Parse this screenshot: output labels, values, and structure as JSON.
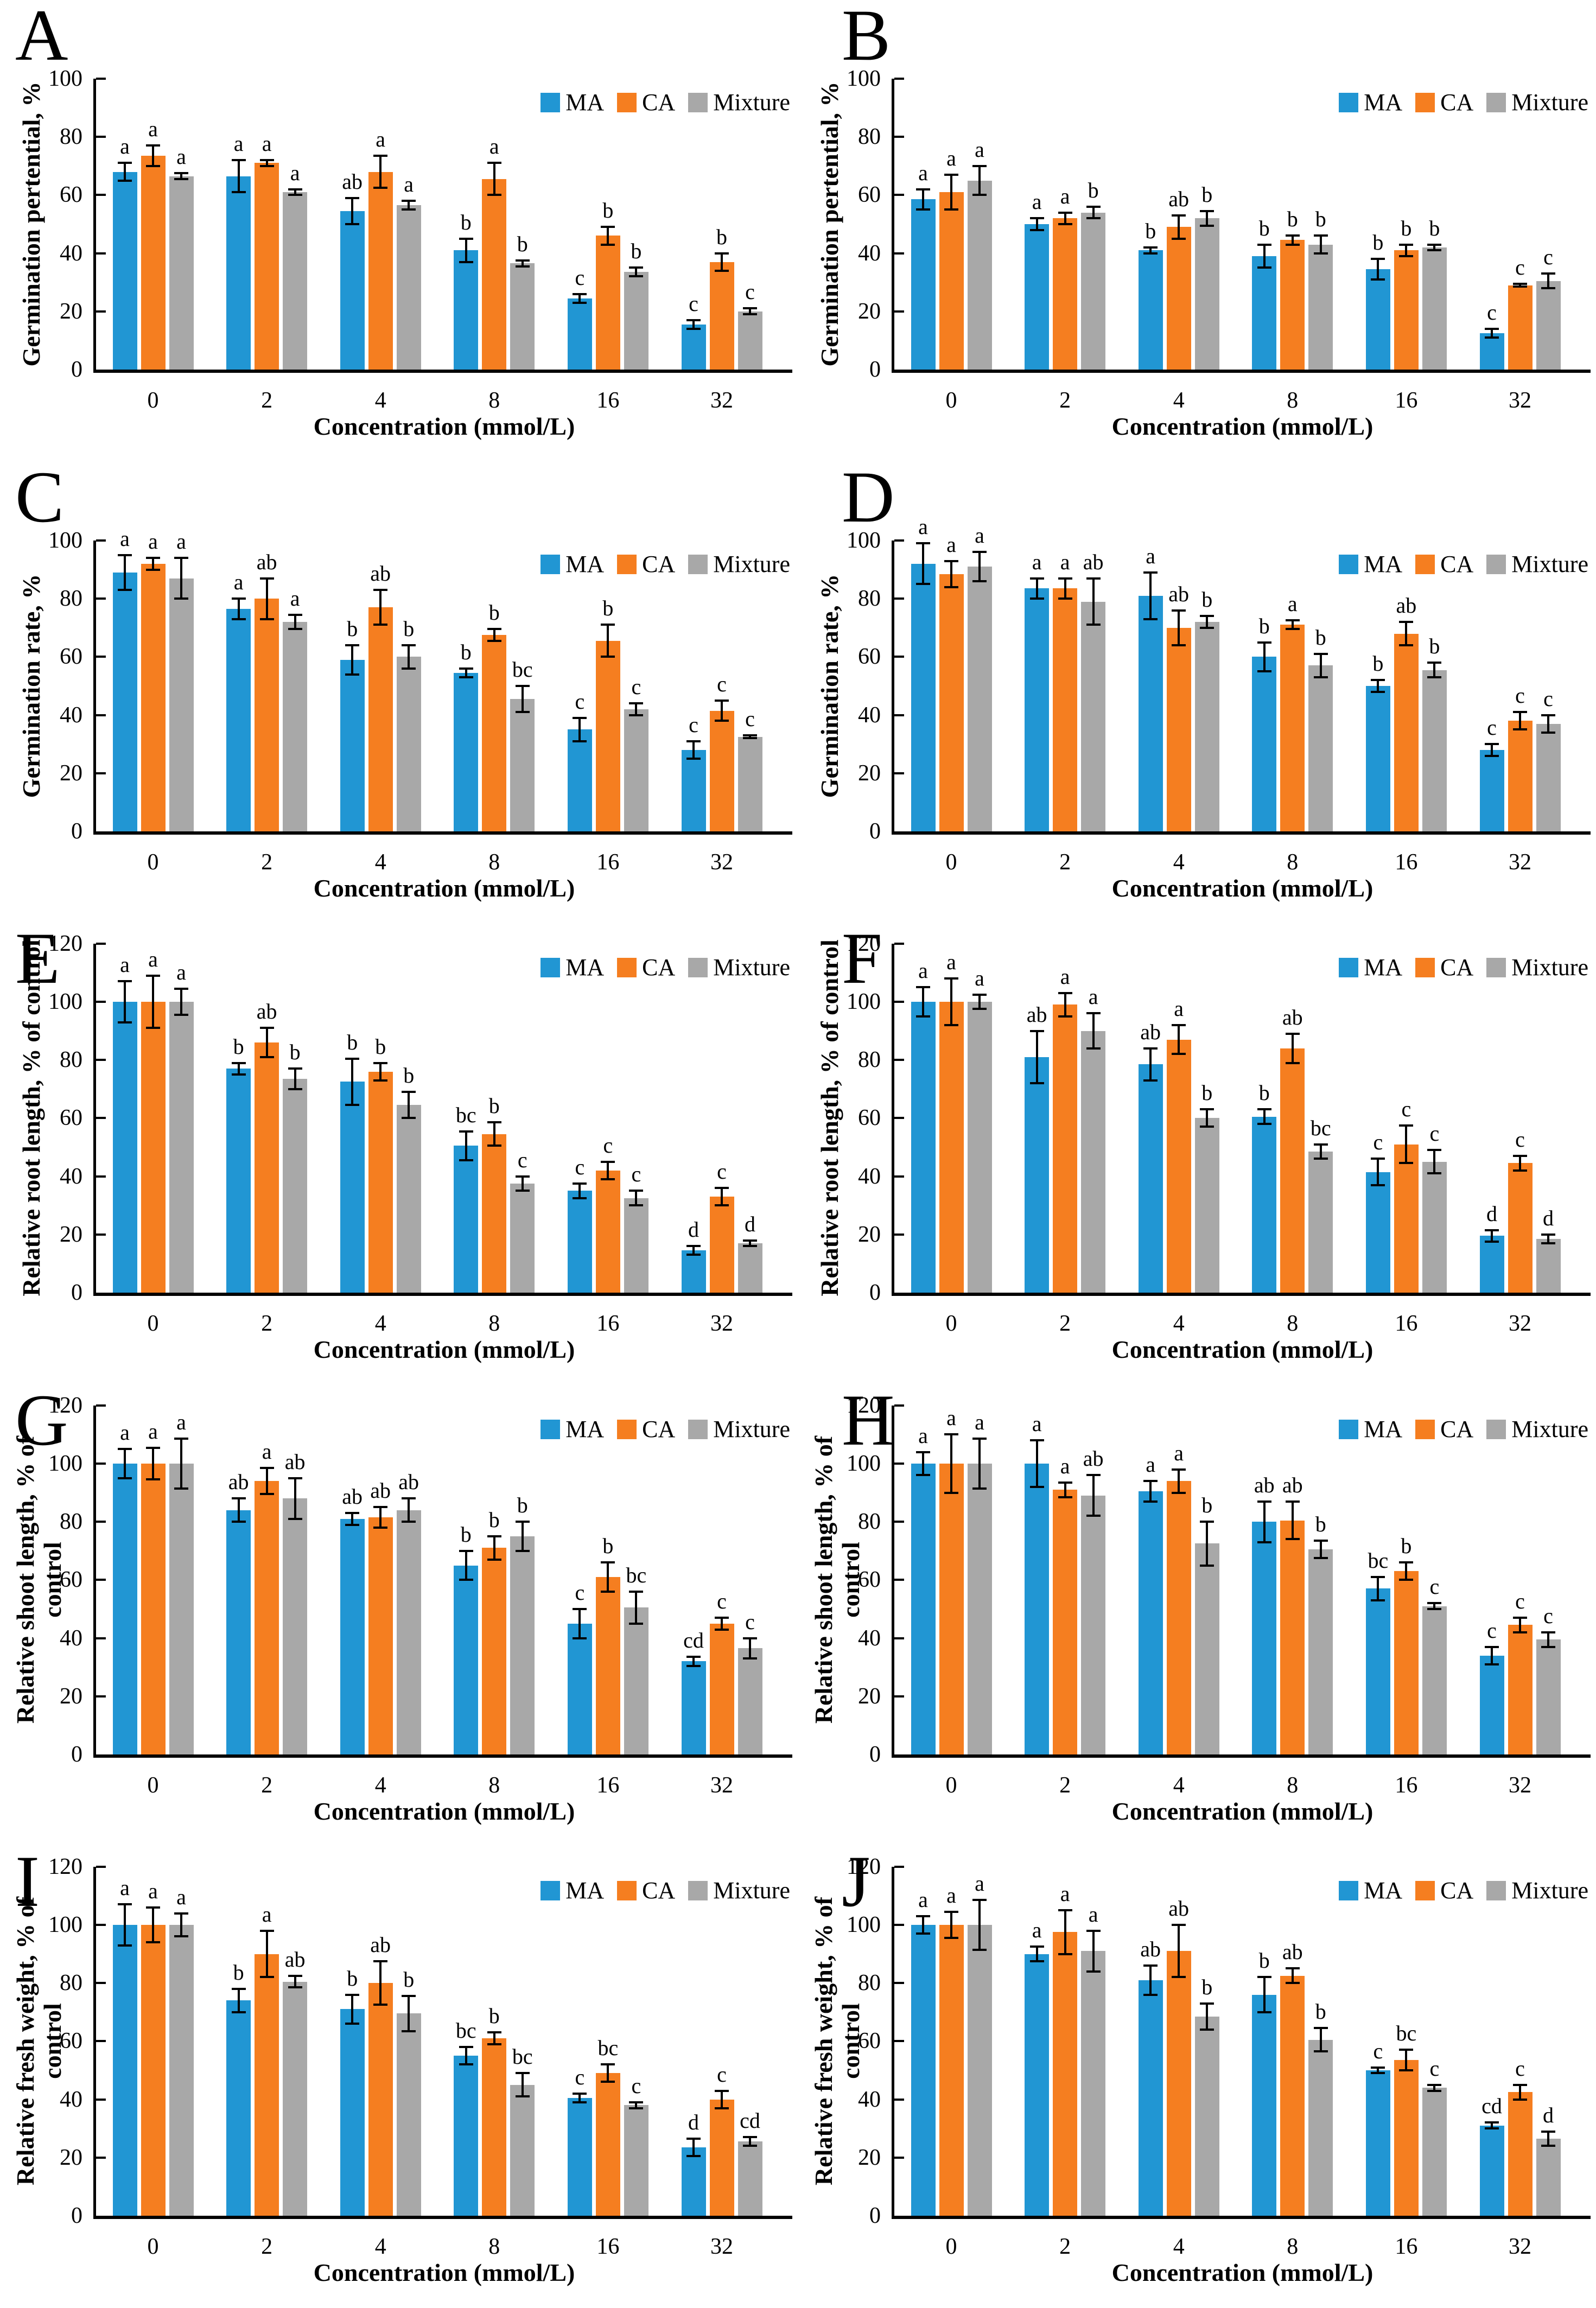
{
  "figure": {
    "xlabel": "Concentration (mmol/L)",
    "legend": [
      "MA",
      "CA",
      "Mixture"
    ],
    "colors": {
      "MA": "#2196D3",
      "CA": "#F57E20",
      "Mixture": "#A8A8A8"
    },
    "axis_color": "#000000",
    "layout": {
      "columns": 2,
      "rows": 5,
      "legend_position": "top-right",
      "grid": "off",
      "error_bars": true
    }
  },
  "chart_data": [
    {
      "panel": "A",
      "type": "bar",
      "ylabel_lines": [
        "Germination pertential, %"
      ],
      "ylim": [
        0,
        100
      ],
      "ytick_step": 20,
      "categories": [
        "0",
        "2",
        "4",
        "8",
        "16",
        "32"
      ],
      "series": [
        {
          "name": "MA",
          "values": [
            68,
            66.5,
            54.5,
            41,
            24.5,
            15.5
          ],
          "errors": [
            3,
            5.5,
            4.5,
            4,
            1.5,
            1.5
          ],
          "letters": [
            "a",
            "a",
            "ab",
            "b",
            "c",
            "c"
          ]
        },
        {
          "name": "CA",
          "values": [
            73.5,
            71,
            68,
            65.5,
            46,
            37
          ],
          "errors": [
            3.5,
            1,
            5.5,
            5.5,
            3,
            3
          ],
          "letters": [
            "a",
            "a",
            "a",
            "a",
            "b",
            "b"
          ]
        },
        {
          "name": "Mixture",
          "values": [
            66.5,
            61,
            56.5,
            36.5,
            33.5,
            20
          ],
          "errors": [
            1,
            1,
            1.5,
            1,
            1.5,
            1
          ],
          "letters": [
            "a",
            "a",
            "a",
            "b",
            "b",
            "c"
          ]
        }
      ]
    },
    {
      "panel": "B",
      "type": "bar",
      "ylabel_lines": [
        "Germination pertential, %"
      ],
      "ylim": [
        0,
        100
      ],
      "ytick_step": 20,
      "categories": [
        "0",
        "2",
        "4",
        "8",
        "16",
        "32"
      ],
      "series": [
        {
          "name": "MA",
          "values": [
            58.5,
            50,
            41,
            39,
            34.5,
            12.5
          ],
          "errors": [
            3.5,
            2,
            1,
            4,
            3.5,
            1.5
          ],
          "letters": [
            "a",
            "a",
            "b",
            "b",
            "b",
            "c"
          ]
        },
        {
          "name": "CA",
          "values": [
            61,
            52,
            49,
            44.5,
            41,
            29
          ],
          "errors": [
            6,
            2,
            4,
            1.5,
            2,
            0.5
          ],
          "letters": [
            "a",
            "a",
            "ab",
            "b",
            "b",
            "c"
          ]
        },
        {
          "name": "Mixture",
          "values": [
            65,
            54,
            52,
            43,
            42,
            30.5
          ],
          "errors": [
            5,
            2,
            2.5,
            3,
            1,
            2.5
          ],
          "letters": [
            "a",
            "b",
            "b",
            "b",
            "b",
            "c"
          ]
        }
      ]
    },
    {
      "panel": "C",
      "type": "bar",
      "ylabel_lines": [
        "Germination rate, %"
      ],
      "ylim": [
        0,
        100
      ],
      "ytick_step": 20,
      "categories": [
        "0",
        "2",
        "4",
        "8",
        "16",
        "32"
      ],
      "series": [
        {
          "name": "MA",
          "values": [
            89,
            76.5,
            59,
            54.5,
            35,
            28
          ],
          "errors": [
            6,
            3.5,
            5,
            1.5,
            4,
            3
          ],
          "letters": [
            "a",
            "a",
            "b",
            "b",
            "c",
            "c"
          ]
        },
        {
          "name": "CA",
          "values": [
            92,
            80,
            77,
            67.5,
            65.5,
            41.5
          ],
          "errors": [
            2,
            7,
            6,
            2,
            5.5,
            3.5
          ],
          "letters": [
            "a",
            "ab",
            "ab",
            "b",
            "b",
            "c"
          ]
        },
        {
          "name": "Mixture",
          "values": [
            87,
            72,
            60,
            45.5,
            42,
            32.5
          ],
          "errors": [
            7,
            2.5,
            4,
            4.5,
            2,
            0.5
          ],
          "letters": [
            "a",
            "a",
            "b",
            "bc",
            "c",
            "c"
          ]
        }
      ]
    },
    {
      "panel": "D",
      "type": "bar",
      "ylabel_lines": [
        "Germination rate, %"
      ],
      "ylim": [
        0,
        100
      ],
      "ytick_step": 20,
      "categories": [
        "0",
        "2",
        "4",
        "8",
        "16",
        "32"
      ],
      "series": [
        {
          "name": "MA",
          "values": [
            92,
            83.5,
            81,
            60,
            50,
            28
          ],
          "errors": [
            7,
            3.5,
            8,
            5,
            2,
            2
          ],
          "letters": [
            "a",
            "a",
            "a",
            "b",
            "b",
            "c"
          ]
        },
        {
          "name": "CA",
          "values": [
            88.5,
            83.5,
            70,
            71,
            68,
            38
          ],
          "errors": [
            4.5,
            3.5,
            6,
            1.5,
            4,
            3
          ],
          "letters": [
            "a",
            "a",
            "ab",
            "a",
            "ab",
            "c"
          ]
        },
        {
          "name": "Mixture",
          "values": [
            91,
            79,
            72,
            57,
            55.5,
            37
          ],
          "errors": [
            5,
            8,
            2,
            4,
            2.5,
            3
          ],
          "letters": [
            "a",
            "ab",
            "b",
            "b",
            "b",
            "c"
          ]
        }
      ]
    },
    {
      "panel": "E",
      "type": "bar",
      "ylabel_lines": [
        "Relative root length, % of control"
      ],
      "ylim": [
        0,
        120
      ],
      "ytick_step": 20,
      "categories": [
        "0",
        "2",
        "4",
        "8",
        "16",
        "32"
      ],
      "series": [
        {
          "name": "MA",
          "values": [
            100,
            77,
            72.5,
            50.5,
            35,
            14.5
          ],
          "errors": [
            7,
            2,
            8,
            5,
            2.5,
            1.5
          ],
          "letters": [
            "a",
            "b",
            "b",
            "bc",
            "c",
            "d"
          ]
        },
        {
          "name": "CA",
          "values": [
            100,
            86,
            76,
            54.5,
            42,
            33
          ],
          "errors": [
            9,
            5,
            3,
            4,
            3,
            3
          ],
          "letters": [
            "a",
            "ab",
            "b",
            "b",
            "c",
            "c"
          ]
        },
        {
          "name": "Mixture",
          "values": [
            100,
            73.5,
            64.5,
            37.5,
            32.5,
            17
          ],
          "errors": [
            4.5,
            3.5,
            4.5,
            2.5,
            2.5,
            1
          ],
          "letters": [
            "a",
            "b",
            "b",
            "c",
            "c",
            "d"
          ]
        }
      ]
    },
    {
      "panel": "F",
      "type": "bar",
      "ylabel_lines": [
        "Relative root length, % of control"
      ],
      "ylim": [
        0,
        120
      ],
      "ytick_step": 20,
      "categories": [
        "0",
        "2",
        "4",
        "8",
        "16",
        "32"
      ],
      "series": [
        {
          "name": "MA",
          "values": [
            100,
            81,
            78.5,
            60.5,
            41.5,
            19.5
          ],
          "errors": [
            5,
            9,
            5.5,
            2.5,
            4.5,
            2
          ],
          "letters": [
            "a",
            "ab",
            "ab",
            "b",
            "c",
            "d"
          ]
        },
        {
          "name": "CA",
          "values": [
            100,
            99,
            87,
            84,
            51,
            44.5
          ],
          "errors": [
            8,
            4,
            5,
            5,
            6.5,
            2.5
          ],
          "letters": [
            "a",
            "a",
            "a",
            "ab",
            "c",
            "c"
          ]
        },
        {
          "name": "Mixture",
          "values": [
            100,
            90,
            60,
            48.5,
            45,
            18.5
          ],
          "errors": [
            2.5,
            6,
            3,
            2.5,
            4,
            1.5
          ],
          "letters": [
            "a",
            "a",
            "b",
            "bc",
            "c",
            "d"
          ]
        }
      ]
    },
    {
      "panel": "G",
      "type": "bar",
      "ylabel_lines": [
        "Relative shoot length, % of",
        "control"
      ],
      "ylim": [
        0,
        120
      ],
      "ytick_step": 20,
      "categories": [
        "0",
        "2",
        "4",
        "8",
        "16",
        "32"
      ],
      "series": [
        {
          "name": "MA",
          "values": [
            100,
            84,
            81,
            65,
            45,
            32
          ],
          "errors": [
            5,
            4,
            2,
            5,
            5,
            1.5
          ],
          "letters": [
            "a",
            "ab",
            "ab",
            "b",
            "c",
            "cd"
          ]
        },
        {
          "name": "CA",
          "values": [
            100,
            94,
            81.5,
            71,
            61,
            45
          ],
          "errors": [
            5.5,
            4.5,
            3.5,
            4,
            5,
            2
          ],
          "letters": [
            "a",
            "a",
            "ab",
            "b",
            "b",
            "c"
          ]
        },
        {
          "name": "Mixture",
          "values": [
            100,
            88,
            84,
            75,
            50.5,
            36.5
          ],
          "errors": [
            8.5,
            7,
            4,
            5,
            5.5,
            3.5
          ],
          "letters": [
            "a",
            "ab",
            "ab",
            "b",
            "bc",
            "c"
          ]
        }
      ]
    },
    {
      "panel": "H",
      "type": "bar",
      "ylabel_lines": [
        "Relative shoot length, % of",
        "control"
      ],
      "ylim": [
        0,
        120
      ],
      "ytick_step": 20,
      "categories": [
        "0",
        "2",
        "4",
        "8",
        "16",
        "32"
      ],
      "series": [
        {
          "name": "MA",
          "values": [
            100,
            100,
            90.5,
            80,
            57,
            34
          ],
          "errors": [
            4,
            8,
            3.5,
            7,
            4,
            3
          ],
          "letters": [
            "a",
            "a",
            "a",
            "ab",
            "bc",
            "c"
          ]
        },
        {
          "name": "CA",
          "values": [
            100,
            91,
            94,
            80.5,
            63,
            44.5
          ],
          "errors": [
            10,
            2.5,
            4,
            6.5,
            3,
            2.5
          ],
          "letters": [
            "a",
            "a",
            "a",
            "ab",
            "b",
            "c"
          ]
        },
        {
          "name": "Mixture",
          "values": [
            100,
            89,
            72.5,
            70.5,
            51,
            39.5
          ],
          "errors": [
            8.5,
            7,
            7.5,
            3,
            1,
            2.5
          ],
          "letters": [
            "a",
            "ab",
            "b",
            "b",
            "c",
            "c"
          ]
        }
      ]
    },
    {
      "panel": "I",
      "type": "bar",
      "ylabel_lines": [
        "Relative fresh weight, % of",
        "control"
      ],
      "ylim": [
        0,
        120
      ],
      "ytick_step": 20,
      "categories": [
        "0",
        "2",
        "4",
        "8",
        "16",
        "32"
      ],
      "series": [
        {
          "name": "MA",
          "values": [
            100,
            74,
            71,
            55,
            40.5,
            23.5
          ],
          "errors": [
            7,
            4,
            5,
            3,
            1.5,
            3
          ],
          "letters": [
            "a",
            "b",
            "b",
            "bc",
            "c",
            "d"
          ]
        },
        {
          "name": "CA",
          "values": [
            100,
            90,
            80,
            61,
            49,
            40
          ],
          "errors": [
            6,
            8,
            7.5,
            2,
            3,
            3
          ],
          "letters": [
            "a",
            "a",
            "ab",
            "b",
            "bc",
            "c"
          ]
        },
        {
          "name": "Mixture",
          "values": [
            100,
            80.5,
            69.5,
            45,
            38,
            25.5
          ],
          "errors": [
            4,
            2,
            6,
            4,
            1,
            1.5
          ],
          "letters": [
            "a",
            "ab",
            "b",
            "bc",
            "c",
            "cd"
          ]
        }
      ]
    },
    {
      "panel": "J",
      "type": "bar",
      "ylabel_lines": [
        "Relative fresh weight, % of",
        "control"
      ],
      "ylim": [
        0,
        120
      ],
      "ytick_step": 20,
      "categories": [
        "0",
        "2",
        "4",
        "8",
        "16",
        "32"
      ],
      "series": [
        {
          "name": "MA",
          "values": [
            100,
            90,
            81,
            76,
            50,
            31
          ],
          "errors": [
            3,
            2.5,
            5,
            6,
            1,
            1
          ],
          "letters": [
            "a",
            "a",
            "ab",
            "b",
            "c",
            "cd"
          ]
        },
        {
          "name": "CA",
          "values": [
            100,
            97.5,
            91,
            82.5,
            53.5,
            42.5
          ],
          "errors": [
            4.5,
            7.5,
            9,
            2.5,
            3.5,
            2.5
          ],
          "letters": [
            "a",
            "a",
            "ab",
            "ab",
            "bc",
            "c"
          ]
        },
        {
          "name": "Mixture",
          "values": [
            100,
            91,
            68.5,
            60.5,
            44,
            26.5
          ],
          "errors": [
            8.5,
            7,
            4.5,
            4,
            1,
            2.5
          ],
          "letters": [
            "a",
            "a",
            "b",
            "b",
            "c",
            "d"
          ]
        }
      ]
    }
  ]
}
